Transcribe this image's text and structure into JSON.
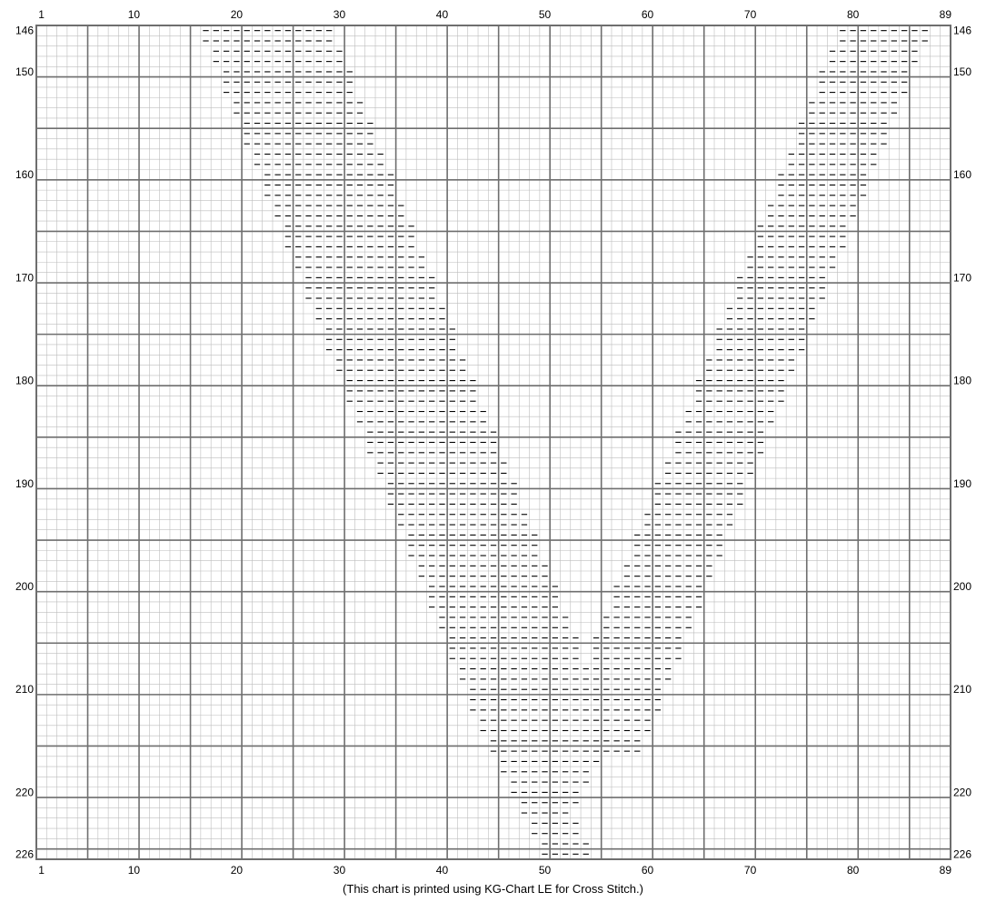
{
  "chart": {
    "columns": {
      "first": 1,
      "last": 89
    },
    "rows": {
      "first": 146,
      "last": 226
    },
    "top_column_labels": [
      "1",
      "10",
      "20",
      "30",
      "40",
      "50",
      "60",
      "70",
      "80",
      "89"
    ],
    "bottom_column_labels": [
      "1",
      "10",
      "20",
      "30",
      "40",
      "50",
      "60",
      "70",
      "80",
      "89"
    ],
    "left_row_labels": [
      "146",
      "150",
      "160",
      "170",
      "180",
      "190",
      "200",
      "210",
      "220",
      "226"
    ],
    "right_row_labels": [
      "146",
      "150",
      "160",
      "170",
      "180",
      "190",
      "200",
      "210",
      "220",
      "226"
    ],
    "major_grid_every": 5,
    "stitch_symbol": "-",
    "colors": {
      "grid_minor": "#bdbdbd",
      "grid_major": "#6e6e6e",
      "symbol": "#000000",
      "background": "#ffffff"
    },
    "left_stripe": {
      "top_row": 146,
      "top_start_col": 17,
      "width_cols": 13,
      "bottom_row": 216,
      "bottom_start_col": 45
    },
    "right_stripe": {
      "top_row": 146,
      "top_start_col": 79,
      "width_cols": 9,
      "bottom_row": 216,
      "bottom_start_col": 51
    },
    "bottom_segment": {
      "from_row": 217,
      "to_row": 226,
      "start_col_at_first_row": 46,
      "width_cols": 10,
      "narrows_by_cols_per_row": 1
    }
  },
  "footer": {
    "note": "(This chart is printed using KG-Chart LE for Cross Stitch.)"
  }
}
